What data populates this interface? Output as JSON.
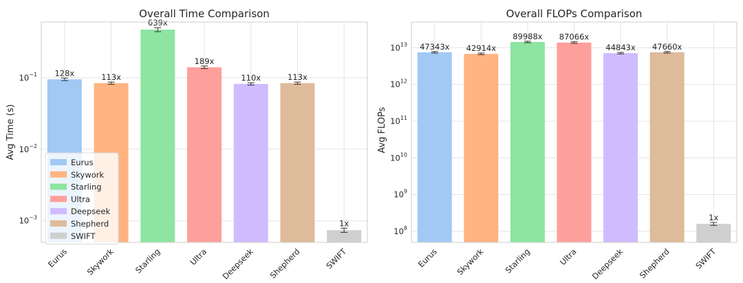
{
  "chart_data": [
    {
      "type": "bar",
      "title": "Overall Time Comparison",
      "xlabel": "",
      "ylabel": "Avg Time (s)",
      "yscale": "log",
      "ylim": [
        0.0005,
        0.6
      ],
      "categories": [
        "Eurus",
        "Skywork",
        "Starling",
        "Ultra",
        "Deepseek",
        "Shepherd",
        "SWIFT"
      ],
      "values": [
        0.095,
        0.084,
        0.47,
        0.14,
        0.082,
        0.084,
        0.00074
      ],
      "errors": [
        0.004,
        0.003,
        0.03,
        0.006,
        0.003,
        0.003,
        5e-05
      ],
      "data_labels": [
        "128x",
        "113x",
        "639x",
        "189x",
        "110x",
        "113x",
        "1x"
      ],
      "yticks": [
        0.001,
        0.01,
        0.1
      ],
      "ytick_bases": [
        "10",
        "10",
        "10"
      ],
      "ytick_exps": [
        "−3",
        "−2",
        "−1"
      ],
      "legend": {
        "placement": "lower-left",
        "entries": [
          "Eurus",
          "Skywork",
          "Starling",
          "Ultra",
          "Deepseek",
          "Shepherd",
          "SWIFT"
        ]
      },
      "grid": true
    },
    {
      "type": "bar",
      "title": "Overall FLOPs Comparison",
      "xlabel": "",
      "ylabel": "Avg FLOPs",
      "yscale": "log",
      "ylim": [
        50000000,
        50000000000000
      ],
      "categories": [
        "Eurus",
        "Skywork",
        "Starling",
        "Ultra",
        "Deepseek",
        "Shepherd",
        "SWIFT"
      ],
      "values": [
        7500000000000,
        6800000000000,
        14300000000000,
        13800000000000,
        7100000000000,
        7500000000000,
        160000000
      ],
      "errors": [
        350000000000,
        350000000000,
        700000000000,
        700000000000,
        350000000000,
        350000000000,
        15000000
      ],
      "data_labels": [
        "47343x",
        "42914x",
        "89988x",
        "87066x",
        "44843x",
        "47660x",
        "1x"
      ],
      "yticks": [
        100000000,
        1000000000,
        10000000000,
        100000000000,
        1000000000000,
        10000000000000
      ],
      "ytick_bases": [
        "10",
        "10",
        "10",
        "10",
        "10",
        "10"
      ],
      "ytick_exps": [
        "8",
        "9",
        "10",
        "11",
        "12",
        "13"
      ],
      "grid": true
    }
  ],
  "colors": {
    "Eurus": "#a1c9f4",
    "Skywork": "#ffb482",
    "Starling": "#8de5a1",
    "Ultra": "#ff9f9b",
    "Deepseek": "#d0bbff",
    "Shepherd": "#debb9b",
    "SWIFT": "#cfcfcf"
  }
}
